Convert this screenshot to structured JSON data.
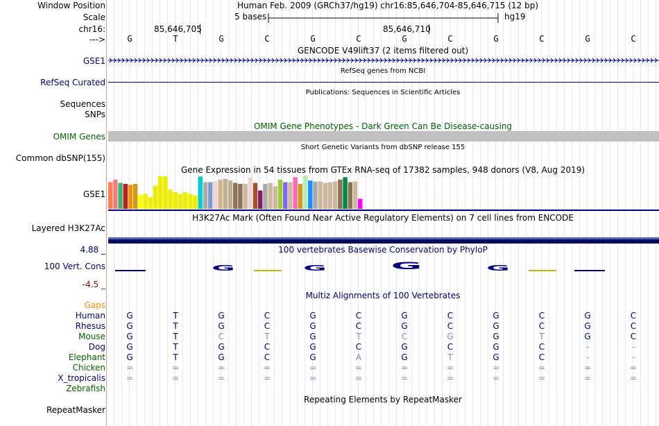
{
  "header": {
    "window_position_label": "Window Position",
    "window_position_value": "Human Feb. 2009 (GRCh37/hg19)   chr16:85,646,704-85,646,715 (12 bp)",
    "scale_label": "Scale",
    "scale_value": "5 bases",
    "scale_assembly": "hg19",
    "chrom_label": "chr16:",
    "pos1": "85,646,705",
    "pos2": "85,646,710",
    "strand_label": "--->"
  },
  "sequence": [
    "G",
    "T",
    "G",
    "C",
    "G",
    "C",
    "G",
    "C",
    "G",
    "C",
    "G",
    "C"
  ],
  "tracks": {
    "gse1": {
      "label": "GSE1",
      "title": "GENCODE V49lift37 (2 items filtered out)"
    },
    "refseq": {
      "label": "RefSeq Curated",
      "title": "RefSeq genes from NCBI"
    },
    "publications": {
      "title": "Publications: Sequences in Scientific Articles"
    },
    "sequences": {
      "label": "Sequences"
    },
    "snps": {
      "label": "SNPs"
    },
    "omim": {
      "label": "OMIM Genes",
      "title": "OMIM Gene Phenotypes - Dark Green Can Be Disease-causing"
    },
    "dbsnp": {
      "label": "Common dbSNP(155)",
      "title": "Short Genetic Variants from dbSNP release 155"
    },
    "gtex": {
      "label": "GSE1",
      "title": "Gene Expression in 54 tissues from GTEx RNA-seq of 17382 samples, 948 donors (V8, Aug 2019)"
    },
    "h3k27ac": {
      "label": "Layered H3K27Ac",
      "title": "H3K27Ac Mark (Often Found Near Active Regulatory Elements) on 7 cell lines from ENCODE"
    },
    "cons": {
      "label": "100 Vert. Cons",
      "max": "4.88 _",
      "min": "-4.5 _",
      "title": "100 vertebrates Basewise Conservation by PhyloP"
    },
    "multiz": {
      "title": "Multiz Alignments of 100 Vertebrates",
      "gaps_label": "Gaps"
    },
    "repeatmasker": {
      "label": "RepeatMasker",
      "title": "Repeating Elements by RepeatMasker"
    }
  },
  "gtex_bars": [
    {
      "v": 0.8,
      "c": "#ff7f50"
    },
    {
      "v": 0.88,
      "c": "#f08080"
    },
    {
      "v": 0.78,
      "c": "#3cb371"
    },
    {
      "v": 0.75,
      "c": "#b22222"
    },
    {
      "v": 0.72,
      "c": "#ff8c00"
    },
    {
      "v": 0.75,
      "c": "#cd9b1d"
    },
    {
      "v": 0.42,
      "c": "#ffff00"
    },
    {
      "v": 0.45,
      "c": "#eeee00"
    },
    {
      "v": 0.35,
      "c": "#eeee00"
    },
    {
      "v": 0.7,
      "c": "#eeee00"
    },
    {
      "v": 0.98,
      "c": "#eeee00"
    },
    {
      "v": 0.98,
      "c": "#eeee00"
    },
    {
      "v": 0.58,
      "c": "#eeee00"
    },
    {
      "v": 0.5,
      "c": "#eeee00"
    },
    {
      "v": 0.45,
      "c": "#eeee00"
    },
    {
      "v": 0.5,
      "c": "#eeee00"
    },
    {
      "v": 0.45,
      "c": "#eeee00"
    },
    {
      "v": 0.4,
      "c": "#eeee00"
    },
    {
      "v": 0.97,
      "c": "#00ced1"
    },
    {
      "v": 0.8,
      "c": "#ababab"
    },
    {
      "v": 0.8,
      "c": "#7a9fcf"
    },
    {
      "v": 0.82,
      "c": "#eed5d2"
    },
    {
      "v": 0.88,
      "c": "#d2b48c"
    },
    {
      "v": 0.9,
      "c": "#c0b094"
    },
    {
      "v": 0.85,
      "c": "#c0b094"
    },
    {
      "v": 0.78,
      "c": "#8b7355"
    },
    {
      "v": 0.75,
      "c": "#8b7355"
    },
    {
      "v": 0.75,
      "c": "#cdb79e"
    },
    {
      "v": 0.95,
      "c": "#eed5d2"
    },
    {
      "v": 0.78,
      "c": "#a0522d"
    },
    {
      "v": 0.55,
      "c": "#8b1c62"
    },
    {
      "v": 0.75,
      "c": "#ababab"
    },
    {
      "v": 0.78,
      "c": "#cdb79e"
    },
    {
      "v": 0.68,
      "c": "#cdb79e"
    },
    {
      "v": 0.88,
      "c": "#9acd32"
    },
    {
      "v": 0.8,
      "c": "#7b68ee"
    },
    {
      "v": 0.8,
      "c": "#cdb79e"
    },
    {
      "v": 0.95,
      "c": "#ff69b4"
    },
    {
      "v": 0.75,
      "c": "#cd9b1d"
    },
    {
      "v": 1.0,
      "c": "#b4eeb4"
    },
    {
      "v": 0.85,
      "c": "#1e90ff"
    },
    {
      "v": 0.82,
      "c": "#ababab"
    },
    {
      "v": 0.82,
      "c": "#cdb79e"
    },
    {
      "v": 0.78,
      "c": "#cdb79e"
    },
    {
      "v": 0.8,
      "c": "#cdb79e"
    },
    {
      "v": 0.82,
      "c": "#cdb79e"
    },
    {
      "v": 0.88,
      "c": "#8b7355"
    },
    {
      "v": 0.95,
      "c": "#008b45"
    },
    {
      "v": 0.8,
      "c": "#8b7355"
    },
    {
      "v": 0.82,
      "c": "#cdb79e"
    },
    {
      "v": 0.3,
      "c": "#ff00ff"
    }
  ],
  "species": [
    {
      "name": "Human",
      "color": "#000080",
      "bases": [
        "G",
        "T",
        "G",
        "C",
        "G",
        "C",
        "G",
        "C",
        "G",
        "C",
        "G",
        "C"
      ],
      "light": []
    },
    {
      "name": "Rhesus",
      "color": "#000080",
      "bases": [
        "G",
        "T",
        "G",
        "C",
        "G",
        "C",
        "G",
        "C",
        "G",
        "C",
        "G",
        "C"
      ],
      "light": []
    },
    {
      "name": "Mouse",
      "color": "#006400",
      "bases": [
        "G",
        "T",
        "C",
        "T",
        "G",
        "T",
        "C",
        "G",
        "G",
        "T",
        "G",
        "C"
      ],
      "light": [
        2,
        3,
        5,
        6,
        7,
        9
      ]
    },
    {
      "name": "Dog",
      "color": "#000080",
      "bases": [
        "G",
        "T",
        "G",
        "C",
        "G",
        "C",
        "G",
        "C",
        "G",
        "C",
        "-",
        "-"
      ],
      "light": [
        10,
        11
      ]
    },
    {
      "name": "Elephant",
      "color": "#006400",
      "bases": [
        "G",
        "T",
        "G",
        "C",
        "G",
        "A",
        "G",
        "T",
        "G",
        "C",
        "-",
        "-"
      ],
      "light": [
        5,
        7,
        10,
        11
      ]
    },
    {
      "name": "Chicken",
      "color": "#006400",
      "bases": [
        "=",
        "=",
        "=",
        "=",
        "=",
        "=",
        "=",
        "=",
        "=",
        "=",
        "=",
        "="
      ],
      "light": [
        0,
        1,
        2,
        3,
        4,
        5,
        6,
        7,
        8,
        9,
        10,
        11
      ]
    },
    {
      "name": "X_tropicalis",
      "color": "#000080",
      "bases": [
        "=",
        "=",
        "=",
        "=",
        "=",
        "=",
        "=",
        "=",
        "=",
        "=",
        "=",
        "="
      ],
      "light": [
        0,
        1,
        2,
        3,
        4,
        5,
        6,
        7,
        8,
        9,
        10,
        11
      ]
    },
    {
      "name": "Zebrafish",
      "color": "#006400",
      "bases": [],
      "light": []
    }
  ],
  "colors": {
    "navy": "#000080",
    "darkgreen": "#006400",
    "gaps": "#ff8c00",
    "minred": "#8b0000"
  }
}
